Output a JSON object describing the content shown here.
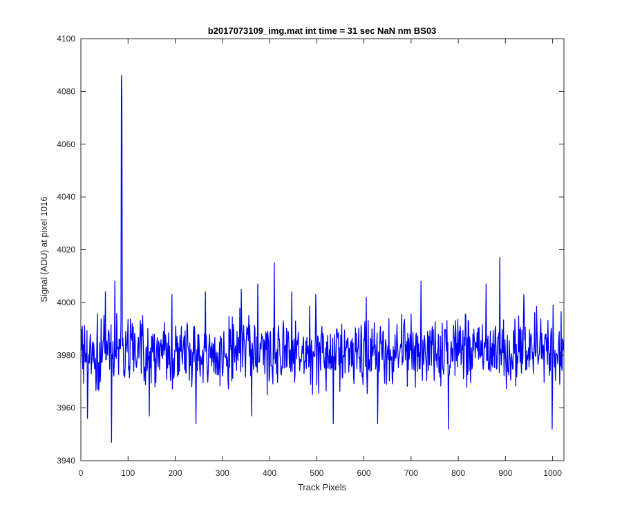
{
  "chart_data": {
    "type": "line",
    "title": "b2017073109_img.mat int time = 31 sec  NaN nm BS03",
    "xlabel": "Track Pixels",
    "ylabel": "Signal (ADU) at pixel 1016",
    "xlim": [
      0,
      1024
    ],
    "ylim": [
      3940,
      4100
    ],
    "xticks": [
      0,
      100,
      200,
      300,
      400,
      500,
      600,
      700,
      800,
      900,
      1000
    ],
    "yticks": [
      3940,
      3960,
      3980,
      4000,
      4020,
      4040,
      4060,
      4080,
      4100
    ],
    "grid": false,
    "legend": "none",
    "series_color": "#0000ff",
    "series": [
      {
        "baseline": 3981,
        "noise_amplitude": 9,
        "n_points": 1024,
        "peaks": [
          {
            "x": 86,
            "y": 4086
          },
          {
            "x": 87,
            "y": 4077
          },
          {
            "x": 65,
            "y": 3947
          },
          {
            "x": 410,
            "y": 4015
          },
          {
            "x": 888,
            "y": 4017
          },
          {
            "x": 244,
            "y": 3954
          },
          {
            "x": 629,
            "y": 3954
          },
          {
            "x": 779,
            "y": 3952
          },
          {
            "x": 999,
            "y": 3952
          },
          {
            "x": 14,
            "y": 3956
          },
          {
            "x": 362,
            "y": 3957
          },
          {
            "x": 145,
            "y": 3957
          },
          {
            "x": 72,
            "y": 4008
          },
          {
            "x": 721,
            "y": 4008
          },
          {
            "x": 375,
            "y": 4007
          },
          {
            "x": 859,
            "y": 4007
          },
          {
            "x": 52,
            "y": 4004
          },
          {
            "x": 193,
            "y": 4003
          },
          {
            "x": 264,
            "y": 4004
          },
          {
            "x": 340,
            "y": 4005
          },
          {
            "x": 447,
            "y": 4004
          },
          {
            "x": 498,
            "y": 4003
          },
          {
            "x": 605,
            "y": 4002
          },
          {
            "x": 939,
            "y": 4003
          },
          {
            "x": 1001,
            "y": 3999
          },
          {
            "x": 535,
            "y": 3954
          }
        ]
      }
    ]
  }
}
